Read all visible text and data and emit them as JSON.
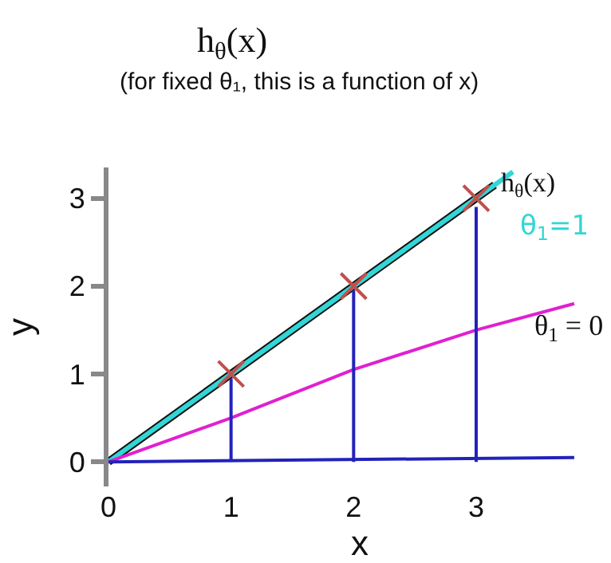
{
  "chart_data": {
    "type": "scatter",
    "title": "h$_{θ}$(x)",
    "subtitle": "(for fixed θ₁, this is a function of x)",
    "xlabel": "x",
    "ylabel": "y",
    "xlim": [
      0,
      4.1
    ],
    "xticks": [
      0,
      1,
      2,
      3
    ],
    "ylim": [
      -0.28,
      3.35
    ],
    "yticks": [
      0,
      1,
      2,
      3
    ],
    "grid": false,
    "legend": false,
    "series": [
      {
        "type": "line",
        "name": "h$_{θ}$(x)",
        "color": "#111111",
        "x": [
          0,
          3.15
        ],
        "values": [
          0,
          3.15
        ]
      },
      {
        "type": "line",
        "name": "θ$_{1}$=1",
        "color": "#33d6d6",
        "x": [
          0,
          3.3
        ],
        "values": [
          0,
          3.3
        ]
      },
      {
        "type": "line",
        "color": "#e020d0",
        "x": [
          0,
          1,
          2,
          3,
          3.8
        ],
        "values": [
          0,
          0.5,
          1.05,
          1.5,
          1.8
        ]
      },
      {
        "type": "line",
        "color": "#2222bb",
        "x": [
          0,
          3.8
        ],
        "values": [
          0,
          0.05
        ]
      },
      {
        "type": "line",
        "color": "#2222bb",
        "x": [
          1,
          1
        ],
        "values": [
          0,
          0.95
        ]
      },
      {
        "type": "line",
        "color": "#2222bb",
        "x": [
          2,
          2
        ],
        "values": [
          0,
          1.95
        ]
      },
      {
        "type": "line",
        "color": "#2222bb",
        "x": [
          3,
          3
        ],
        "values": [
          0,
          2.9
        ]
      },
      {
        "marker": "cross",
        "color": "#c0504d",
        "x": [
          1,
          2,
          3
        ],
        "values": [
          1,
          2,
          3
        ]
      }
    ],
    "annotations": [
      "θ$_{1}$ = 0"
    ]
  }
}
